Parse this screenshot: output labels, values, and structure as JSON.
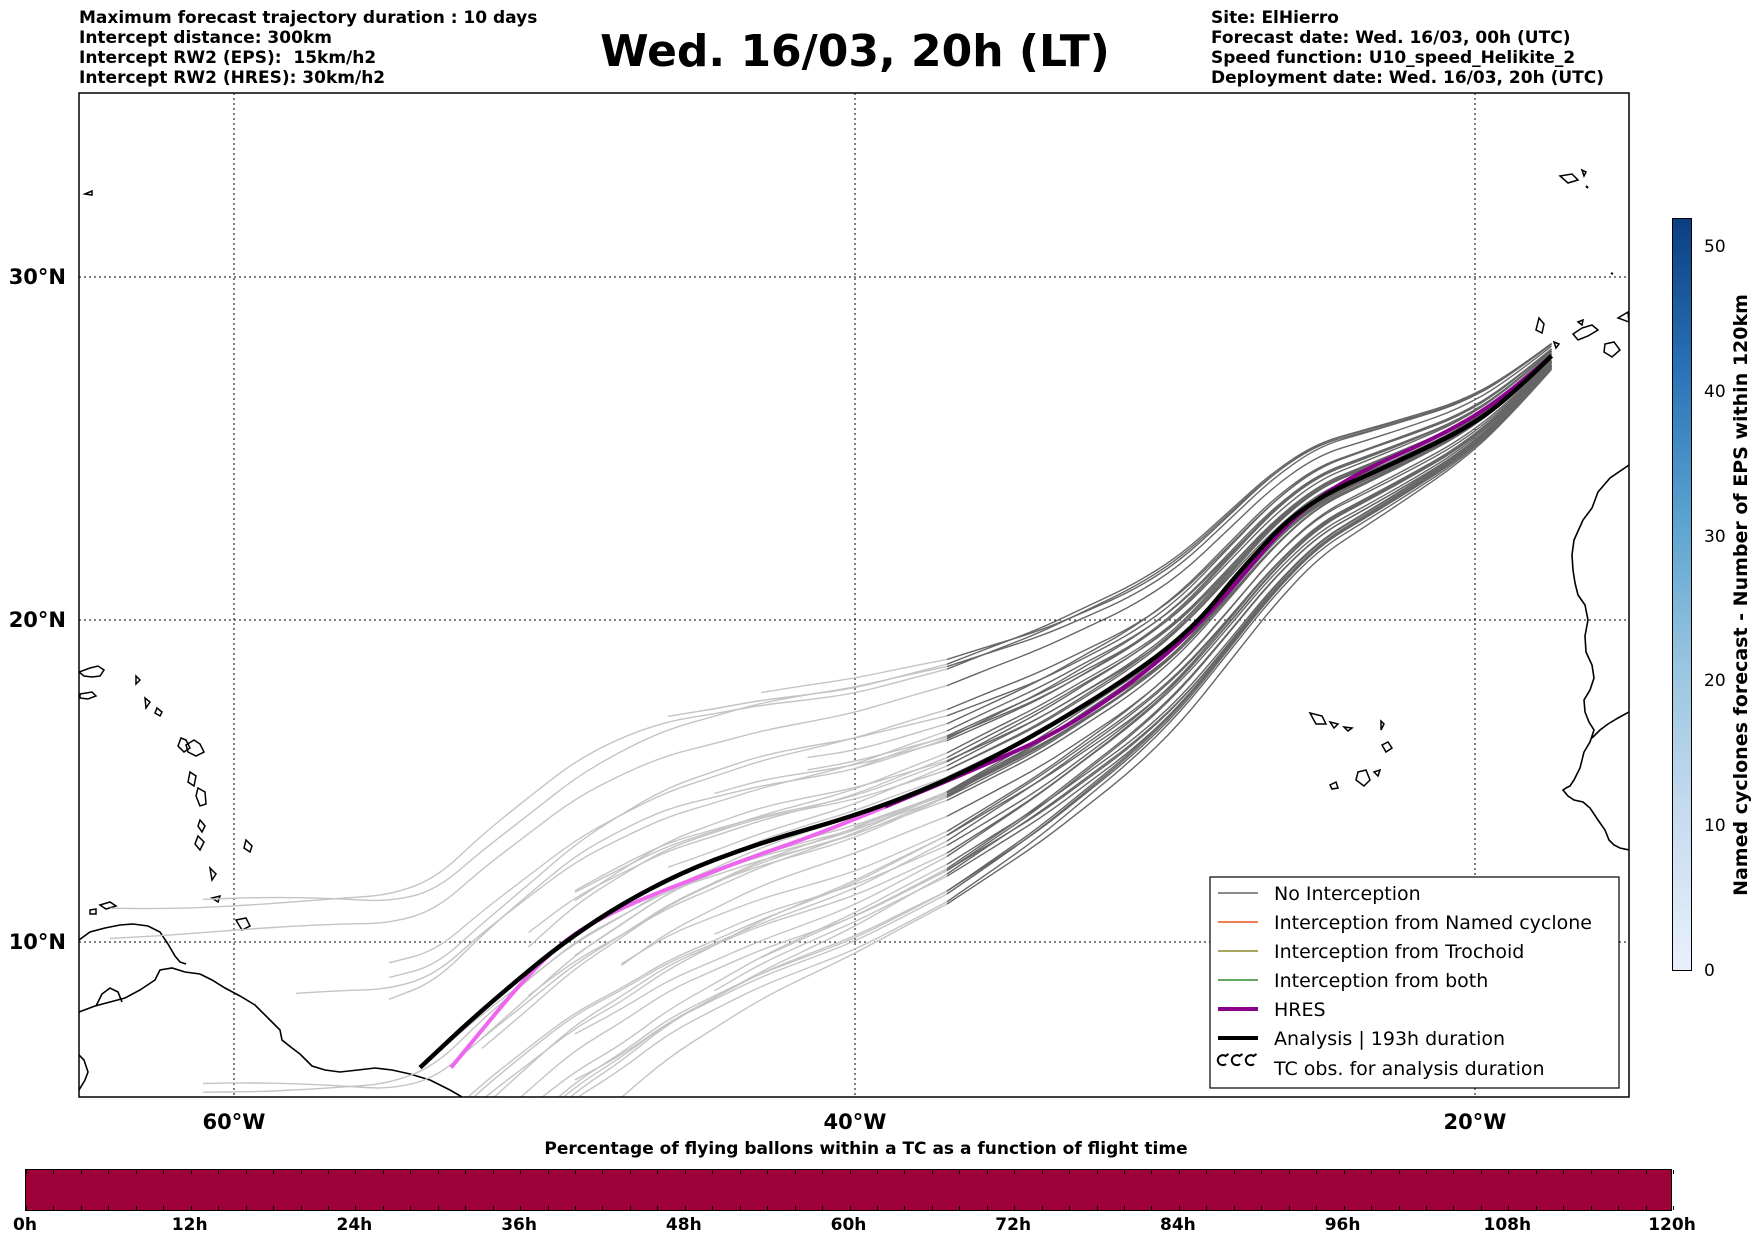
{
  "header": {
    "left_lines": [
      "Maximum forecast trajectory duration : 10 days",
      "Intercept distance: 300km",
      "Intercept RW2 (EPS):  15km/h2",
      "Intercept RW2 (HRES): 30km/h2"
    ],
    "title": "Wed. 16/03, 20h (LT)",
    "right_lines": [
      "Site: ElHierro",
      "Forecast date: Wed. 16/03, 00h (UTC)",
      "Speed function: U10_speed_Helikite_2",
      "Deployment date: Wed. 16/03, 20h (UTC)"
    ]
  },
  "map": {
    "lat_labels": [
      "30°N",
      "20°N",
      "10°N"
    ],
    "lon_labels": [
      "60°W",
      "40°W",
      "20°W"
    ],
    "lat_range": [
      5.4,
      34.7
    ],
    "lon_range": [
      -65,
      -15
    ],
    "colors": {
      "eps_no_interception": "#666666",
      "eps_long": "#c4c4c4",
      "named_cyclone": "#e8541a",
      "trochoid": "#8a8a2e",
      "both": "#2e8b2e",
      "hres": "#8b008b",
      "hres_long": "#ee66ee",
      "analysis": "#000000"
    },
    "analysis_track": [
      [
        -17.5,
        27.7
      ],
      [
        -18.5,
        26.8
      ],
      [
        -20,
        25.7
      ],
      [
        -22.5,
        24.6
      ],
      [
        -25.5,
        23.4
      ],
      [
        -27.5,
        21.5
      ],
      [
        -29,
        19.8
      ],
      [
        -31,
        18.3
      ],
      [
        -34,
        16.5
      ],
      [
        -37,
        15.0
      ],
      [
        -40,
        13.9
      ],
      [
        -43,
        13.1
      ],
      [
        -46,
        12.0
      ],
      [
        -49,
        10.3
      ],
      [
        -52,
        7.9
      ],
      [
        -54,
        6.1
      ]
    ],
    "hres_track": [
      [
        -17.5,
        27.7
      ],
      [
        -19,
        26.5
      ],
      [
        -21,
        25.4
      ],
      [
        -24,
        24.2
      ],
      [
        -26,
        22.9
      ],
      [
        -28,
        20.7
      ],
      [
        -30,
        18.8
      ],
      [
        -33,
        16.7
      ],
      [
        -36,
        15.4
      ],
      [
        -39,
        14.2
      ],
      [
        -41,
        13.4
      ],
      [
        -44,
        12.4
      ],
      [
        -48,
        10.9
      ],
      [
        -50,
        9.6
      ],
      [
        -53,
        6.1
      ]
    ],
    "hres_split_lon": -39
  },
  "legend": {
    "items": [
      {
        "label": "No Interception",
        "color": "#666666",
        "style": "thin"
      },
      {
        "label": "Interception from Named cyclone",
        "color": "#e8541a",
        "style": "thin"
      },
      {
        "label": "Interception from Trochoid",
        "color": "#8a8a2e",
        "style": "thin"
      },
      {
        "label": "Interception from both",
        "color": "#2e8b2e",
        "style": "thin"
      },
      {
        "label": "HRES",
        "color": "#8b008b",
        "style": "thick"
      },
      {
        "label": "Analysis | 193h duration",
        "color": "#000000",
        "style": "thick"
      },
      {
        "label": "TC obs. for analysis duration",
        "color": "#000000",
        "style": "symbol"
      }
    ]
  },
  "bottom_colorbar": {
    "title": "Percentage of flying ballons within a TC as a function of flight time",
    "color": "#9e003a",
    "ticks": [
      "0h",
      "12h",
      "24h",
      "36h",
      "48h",
      "60h",
      "72h",
      "84h",
      "96h",
      "108h",
      "120h"
    ]
  },
  "side_colorbar": {
    "title": "Named cyclones forecast - Number of EPS within 120km",
    "range": [
      0,
      52
    ],
    "ticks": [
      0,
      10,
      20,
      30,
      40,
      50
    ]
  }
}
